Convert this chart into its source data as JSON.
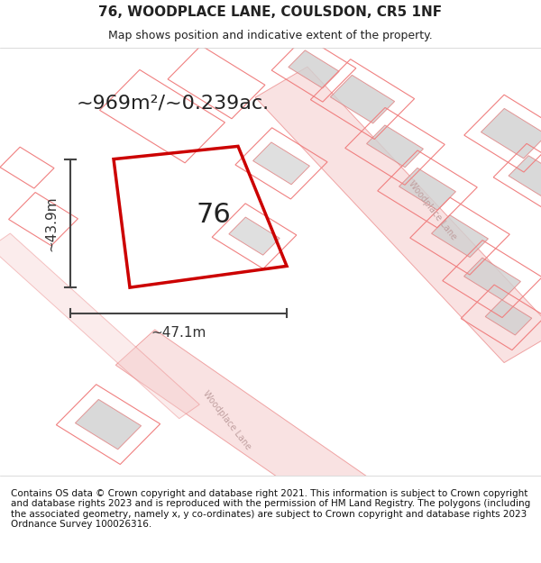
{
  "title": "76, WOODPLACE LANE, COULSDON, CR5 1NF",
  "subtitle": "Map shows position and indicative extent of the property.",
  "area_text": "~969m²/~0.239ac.",
  "width_label": "~47.1m",
  "height_label": "~43.9m",
  "plot_number": "76",
  "footer_text": "Contains OS data © Crown copyright and database right 2021. This information is subject to Crown copyright and database rights 2023 and is reproduced with the permission of HM Land Registry. The polygons (including the associated geometry, namely x, y co-ordinates) are subject to Crown copyright and database rights 2023 Ordnance Survey 100026316.",
  "bg_color": "#f5f4f2",
  "map_bg": "#f9f8f6",
  "plot_color": "#cc0000",
  "road_color": "#f08080",
  "building_color": "#d9d9d9",
  "road_line_color": "#e87070",
  "street_label_color": "#c0a0a0",
  "title_color": "#222222",
  "footer_color": "#111111",
  "annotation_color": "#333333",
  "footer_fontsize": 7.5,
  "title_fontsize": 11,
  "subtitle_fontsize": 9,
  "area_fontsize": 16,
  "plot_num_fontsize": 22,
  "annotation_fontsize": 11
}
